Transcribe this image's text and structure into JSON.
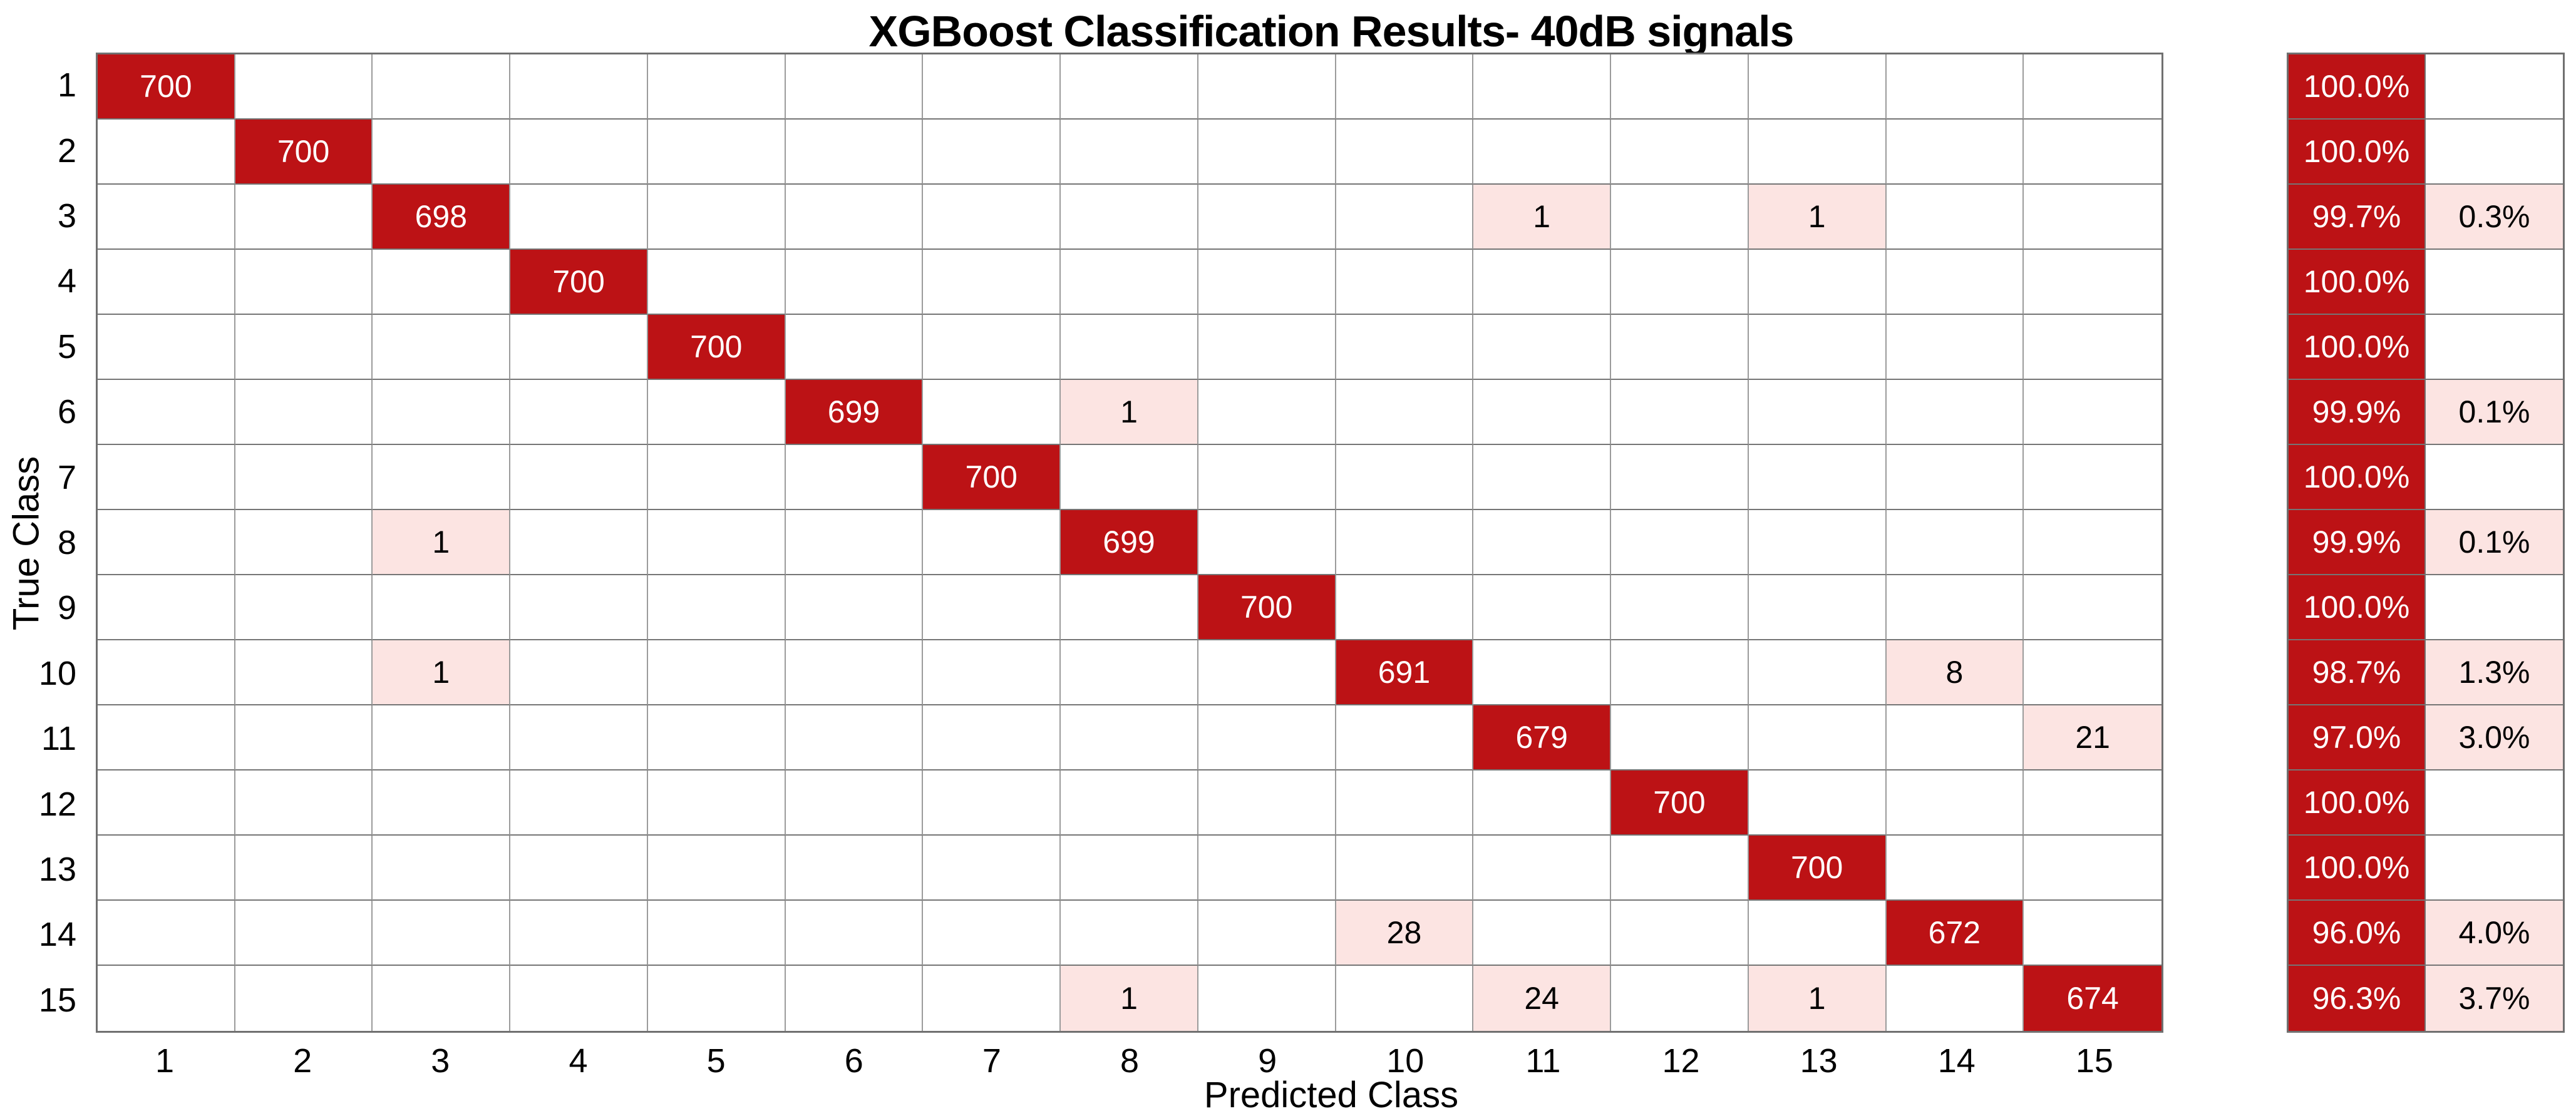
{
  "title": "XGBoost Classification Results- 40dB signals",
  "colors": {
    "diagonal": "#bc1215",
    "off_diagonal": "#fce4e2",
    "diagonal_text": "#ffffff",
    "off_diagonal_text": "#000000",
    "grid_line": "#757575"
  },
  "chart_data": {
    "type": "heatmap",
    "subtype": "confusion-matrix",
    "title": "XGBoost Classification Results- 40dB signals",
    "xlabel": "Predicted Class",
    "ylabel": "True Class",
    "x_tick_labels": [
      "1",
      "2",
      "3",
      "4",
      "5",
      "6",
      "7",
      "8",
      "9",
      "10",
      "11",
      "12",
      "13",
      "14",
      "15"
    ],
    "y_tick_labels": [
      "1",
      "2",
      "3",
      "4",
      "5",
      "6",
      "7",
      "8",
      "9",
      "10",
      "11",
      "12",
      "13",
      "14",
      "15"
    ],
    "matrix": [
      [
        700,
        0,
        0,
        0,
        0,
        0,
        0,
        0,
        0,
        0,
        0,
        0,
        0,
        0,
        0
      ],
      [
        0,
        700,
        0,
        0,
        0,
        0,
        0,
        0,
        0,
        0,
        0,
        0,
        0,
        0,
        0
      ],
      [
        0,
        0,
        698,
        0,
        0,
        0,
        0,
        0,
        0,
        0,
        1,
        0,
        1,
        0,
        0
      ],
      [
        0,
        0,
        0,
        700,
        0,
        0,
        0,
        0,
        0,
        0,
        0,
        0,
        0,
        0,
        0
      ],
      [
        0,
        0,
        0,
        0,
        700,
        0,
        0,
        0,
        0,
        0,
        0,
        0,
        0,
        0,
        0
      ],
      [
        0,
        0,
        0,
        0,
        0,
        699,
        0,
        1,
        0,
        0,
        0,
        0,
        0,
        0,
        0
      ],
      [
        0,
        0,
        0,
        0,
        0,
        0,
        700,
        0,
        0,
        0,
        0,
        0,
        0,
        0,
        0
      ],
      [
        0,
        0,
        1,
        0,
        0,
        0,
        0,
        699,
        0,
        0,
        0,
        0,
        0,
        0,
        0
      ],
      [
        0,
        0,
        0,
        0,
        0,
        0,
        0,
        0,
        700,
        0,
        0,
        0,
        0,
        0,
        0
      ],
      [
        0,
        0,
        1,
        0,
        0,
        0,
        0,
        0,
        0,
        691,
        0,
        0,
        0,
        8,
        0
      ],
      [
        0,
        0,
        0,
        0,
        0,
        0,
        0,
        0,
        0,
        0,
        679,
        0,
        0,
        0,
        21
      ],
      [
        0,
        0,
        0,
        0,
        0,
        0,
        0,
        0,
        0,
        0,
        0,
        700,
        0,
        0,
        0
      ],
      [
        0,
        0,
        0,
        0,
        0,
        0,
        0,
        0,
        0,
        0,
        0,
        0,
        700,
        0,
        0
      ],
      [
        0,
        0,
        0,
        0,
        0,
        0,
        0,
        0,
        0,
        28,
        0,
        0,
        0,
        672,
        0
      ],
      [
        0,
        0,
        0,
        0,
        0,
        0,
        0,
        1,
        0,
        0,
        24,
        0,
        1,
        0,
        674
      ]
    ],
    "row_summary": [
      {
        "recall": "100.0%",
        "error": ""
      },
      {
        "recall": "100.0%",
        "error": ""
      },
      {
        "recall": "99.7%",
        "error": "0.3%"
      },
      {
        "recall": "100.0%",
        "error": ""
      },
      {
        "recall": "100.0%",
        "error": ""
      },
      {
        "recall": "99.9%",
        "error": "0.1%"
      },
      {
        "recall": "100.0%",
        "error": ""
      },
      {
        "recall": "99.9%",
        "error": "0.1%"
      },
      {
        "recall": "100.0%",
        "error": ""
      },
      {
        "recall": "98.7%",
        "error": "1.3%"
      },
      {
        "recall": "97.0%",
        "error": "3.0%"
      },
      {
        "recall": "100.0%",
        "error": ""
      },
      {
        "recall": "100.0%",
        "error": ""
      },
      {
        "recall": "96.0%",
        "error": "4.0%"
      },
      {
        "recall": "96.3%",
        "error": "3.7%"
      }
    ],
    "legend_position": "right-strip",
    "grid": true
  }
}
